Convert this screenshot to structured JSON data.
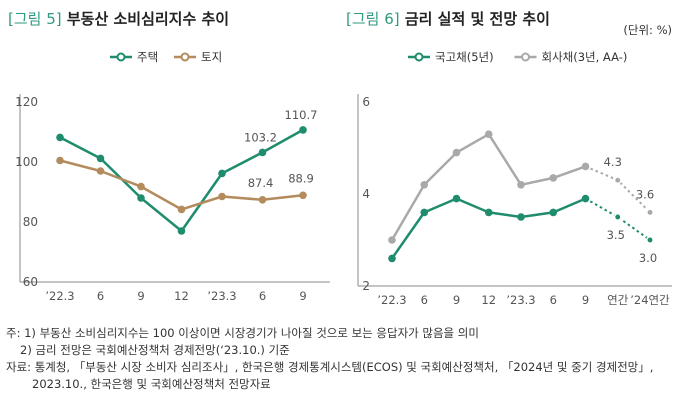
{
  "panels": [
    {
      "tag": "[그림 5]",
      "title": "부동산 소비심리지수 추이"
    },
    {
      "tag": "[그림 6]",
      "title": "금리 실적 및 전망 추이",
      "unit": "(단위: %)"
    }
  ],
  "colors": {
    "green": "#1f8c6e",
    "tan": "#b38b5d",
    "gray": "#a9a9a9",
    "accent": "#2e9a80"
  },
  "notes": [
    "주: 1) 부동산 소비심리지수는 100 이상이면 시장경기가 나아질 것으로 보는 응답자가 많음을 의미",
    "2) 금리 전망은 국회예산정책처 경제전망(‘23.10.) 기준",
    "자료: 통계청, 「부동산 시장 소비자 심리조사」, 한국은행 경제통계시스템(ECOS) 및 국회예산정책처, 「2024년 및 중기 경제전망」,",
    "2023.10., 한국은행 및 국회예산정책처 전망자료"
  ],
  "chart_data": [
    {
      "type": "line",
      "x": [
        "’22.3",
        "6",
        "9",
        "12",
        "’23.3",
        "6",
        "9"
      ],
      "ylim": [
        60,
        120
      ],
      "yticks": [
        60,
        80,
        100,
        120
      ],
      "legend_position": "top",
      "series": [
        {
          "name": "주택",
          "color": "#1f8c6e",
          "values": [
            108.2,
            101.2,
            88.0,
            77.0,
            96.2,
            103.2,
            110.7
          ],
          "labels": [
            "",
            "",
            "",
            "",
            "",
            "103.2",
            "110.7"
          ]
        },
        {
          "name": "토지",
          "color": "#b38b5d",
          "values": [
            100.5,
            97.0,
            91.8,
            84.2,
            88.5,
            87.4,
            88.9
          ],
          "labels": [
            "",
            "",
            "",
            "",
            "",
            "87.4",
            "88.9"
          ]
        }
      ]
    },
    {
      "type": "line",
      "x": [
        "’22.3",
        "6",
        "9",
        "12",
        "’23.3",
        "6",
        "9",
        "연간",
        "’24연간"
      ],
      "ylim": [
        2,
        6
      ],
      "yticks": [
        2,
        4,
        6
      ],
      "legend_position": "top",
      "forecast_from_index": 6,
      "series": [
        {
          "name": "국고채(5년)",
          "color": "#1f8c6e",
          "values": [
            2.6,
            3.6,
            3.9,
            3.6,
            3.5,
            3.6,
            3.9,
            3.5,
            3.0
          ],
          "labels": [
            "",
            "",
            "",
            "",
            "",
            "",
            "",
            "3.5",
            "3.0"
          ]
        },
        {
          "name": "회사채(3년, AA-)",
          "color": "#a9a9a9",
          "values": [
            3.0,
            4.2,
            4.9,
            5.3,
            4.2,
            4.35,
            4.6,
            4.3,
            3.6
          ],
          "labels": [
            "",
            "",
            "",
            "",
            "",
            "",
            "",
            "4.3",
            "3.6"
          ]
        }
      ]
    }
  ]
}
